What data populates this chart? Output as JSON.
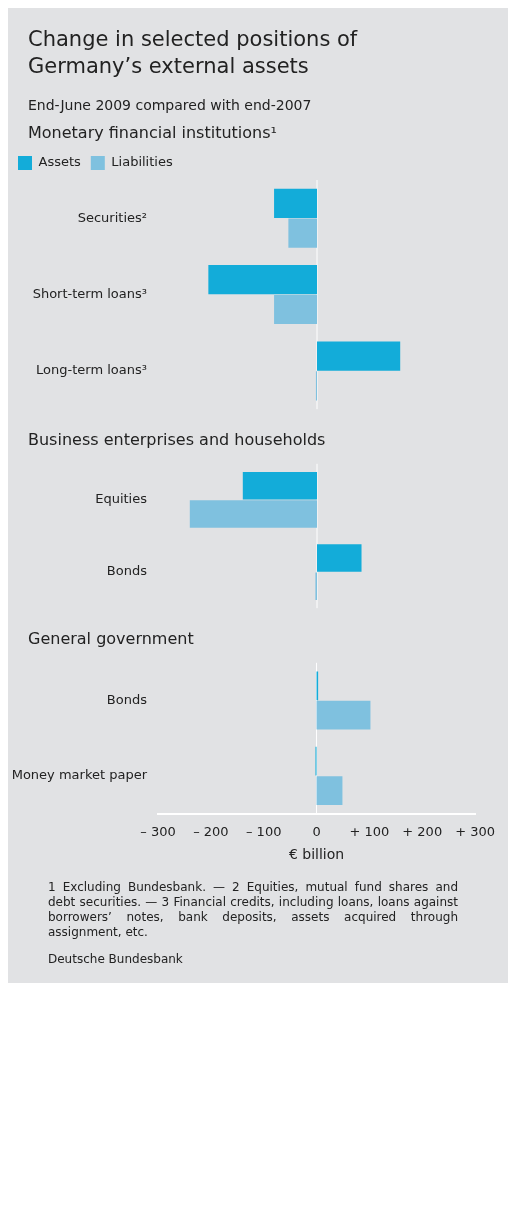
{
  "chart_data": [
    {
      "type": "other",
      "title": "Change in selected positions of Germany’s external assets",
      "subtitle": "End-June 2009 compared with end-2007"
    },
    {
      "type": "bar",
      "orientation": "horizontal",
      "title": "Monetary financial institutions¹",
      "categories": [
        "Securities²",
        "Short-term loans³",
        "Long-term loans³"
      ],
      "series": [
        {
          "name": "Assets",
          "color": "#13acd9",
          "values": [
            -81,
            -205,
            157
          ]
        },
        {
          "name": "Liabilities",
          "color": "#7fc1df",
          "values": [
            -54,
            -81,
            -2
          ]
        }
      ],
      "xlim": [
        -300,
        300
      ],
      "ref_lines": [
        {
          "axis": "x",
          "value": 0,
          "color": "#ffffff"
        }
      ],
      "legend": "top left",
      "tick_labels": "y"
    },
    {
      "type": "bar",
      "orientation": "horizontal",
      "title": "Business enterprises and households",
      "categories": [
        "Equities",
        "Bonds"
      ],
      "series": [
        {
          "color": "#13acd9",
          "values": [
            -140,
            84
          ]
        },
        {
          "color": "#7fc1df",
          "values": [
            -240,
            -3
          ]
        }
      ],
      "xlim": [
        -300,
        300
      ],
      "ref_lines": [
        {
          "axis": "x",
          "value": 0,
          "color": "#ffffff"
        }
      ],
      "tick_labels": "y"
    },
    {
      "type": "bar",
      "orientation": "horizontal",
      "title": "General government",
      "categories": [
        "Bonds",
        "Money market paper"
      ],
      "series": [
        {
          "color": "#13acd9",
          "values": [
            3,
            -2
          ]
        },
        {
          "color": "#7fc1df",
          "values": [
            102,
            49
          ]
        }
      ],
      "xlim": [
        -300,
        300
      ],
      "xticks": [
        {
          "value": -300,
          "label": "– 300"
        },
        {
          "value": -200,
          "label": "– 200"
        },
        {
          "value": -100,
          "label": "– 100"
        },
        0,
        {
          "value": 100,
          "label": "+ 100"
        },
        {
          "value": 200,
          "label": "+ 200"
        },
        {
          "value": 300,
          "label": "+ 300"
        }
      ],
      "xlabel": "€ billion",
      "ref_lines": [
        {
          "axis": "x",
          "value": 0,
          "color": "#ffffff"
        }
      ],
      "annotations": [
        "1 Excluding Bundesbank. — 2 Equities, mutual fund shares and debt securities. — 3 Financial credits, including loans, loans against borrowers’ notes, bank deposits, assets acquired through assignment, etc.",
        "Deutsche Bundesbank"
      ]
    }
  ]
}
